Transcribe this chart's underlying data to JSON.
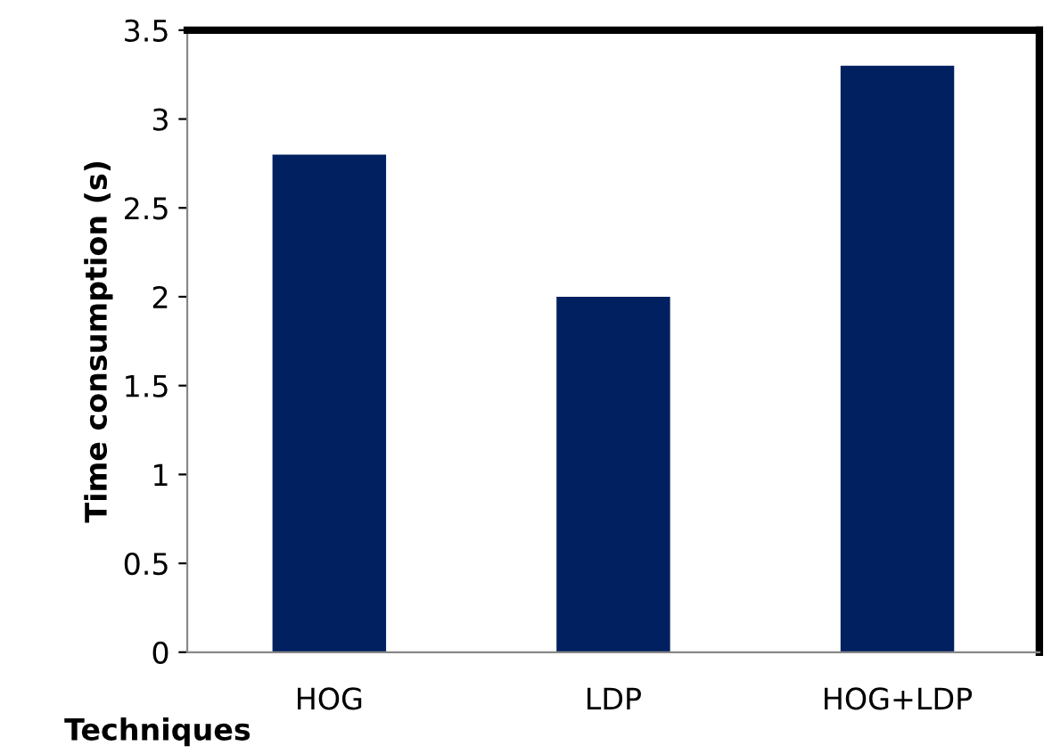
{
  "chart_data": {
    "type": "bar",
    "xlabel": "Techniques",
    "ylabel": "Time consumption (s)",
    "categories": [
      "HOG",
      "LDP",
      "HOG+LDP"
    ],
    "values": [
      2.8,
      2.0,
      3.3
    ],
    "color": "#002060",
    "ylim": [
      0,
      3.5
    ],
    "yticks": [
      0,
      0.5,
      1,
      1.5,
      2,
      2.5,
      3,
      3.5
    ],
    "grid": false,
    "legend": false
  }
}
